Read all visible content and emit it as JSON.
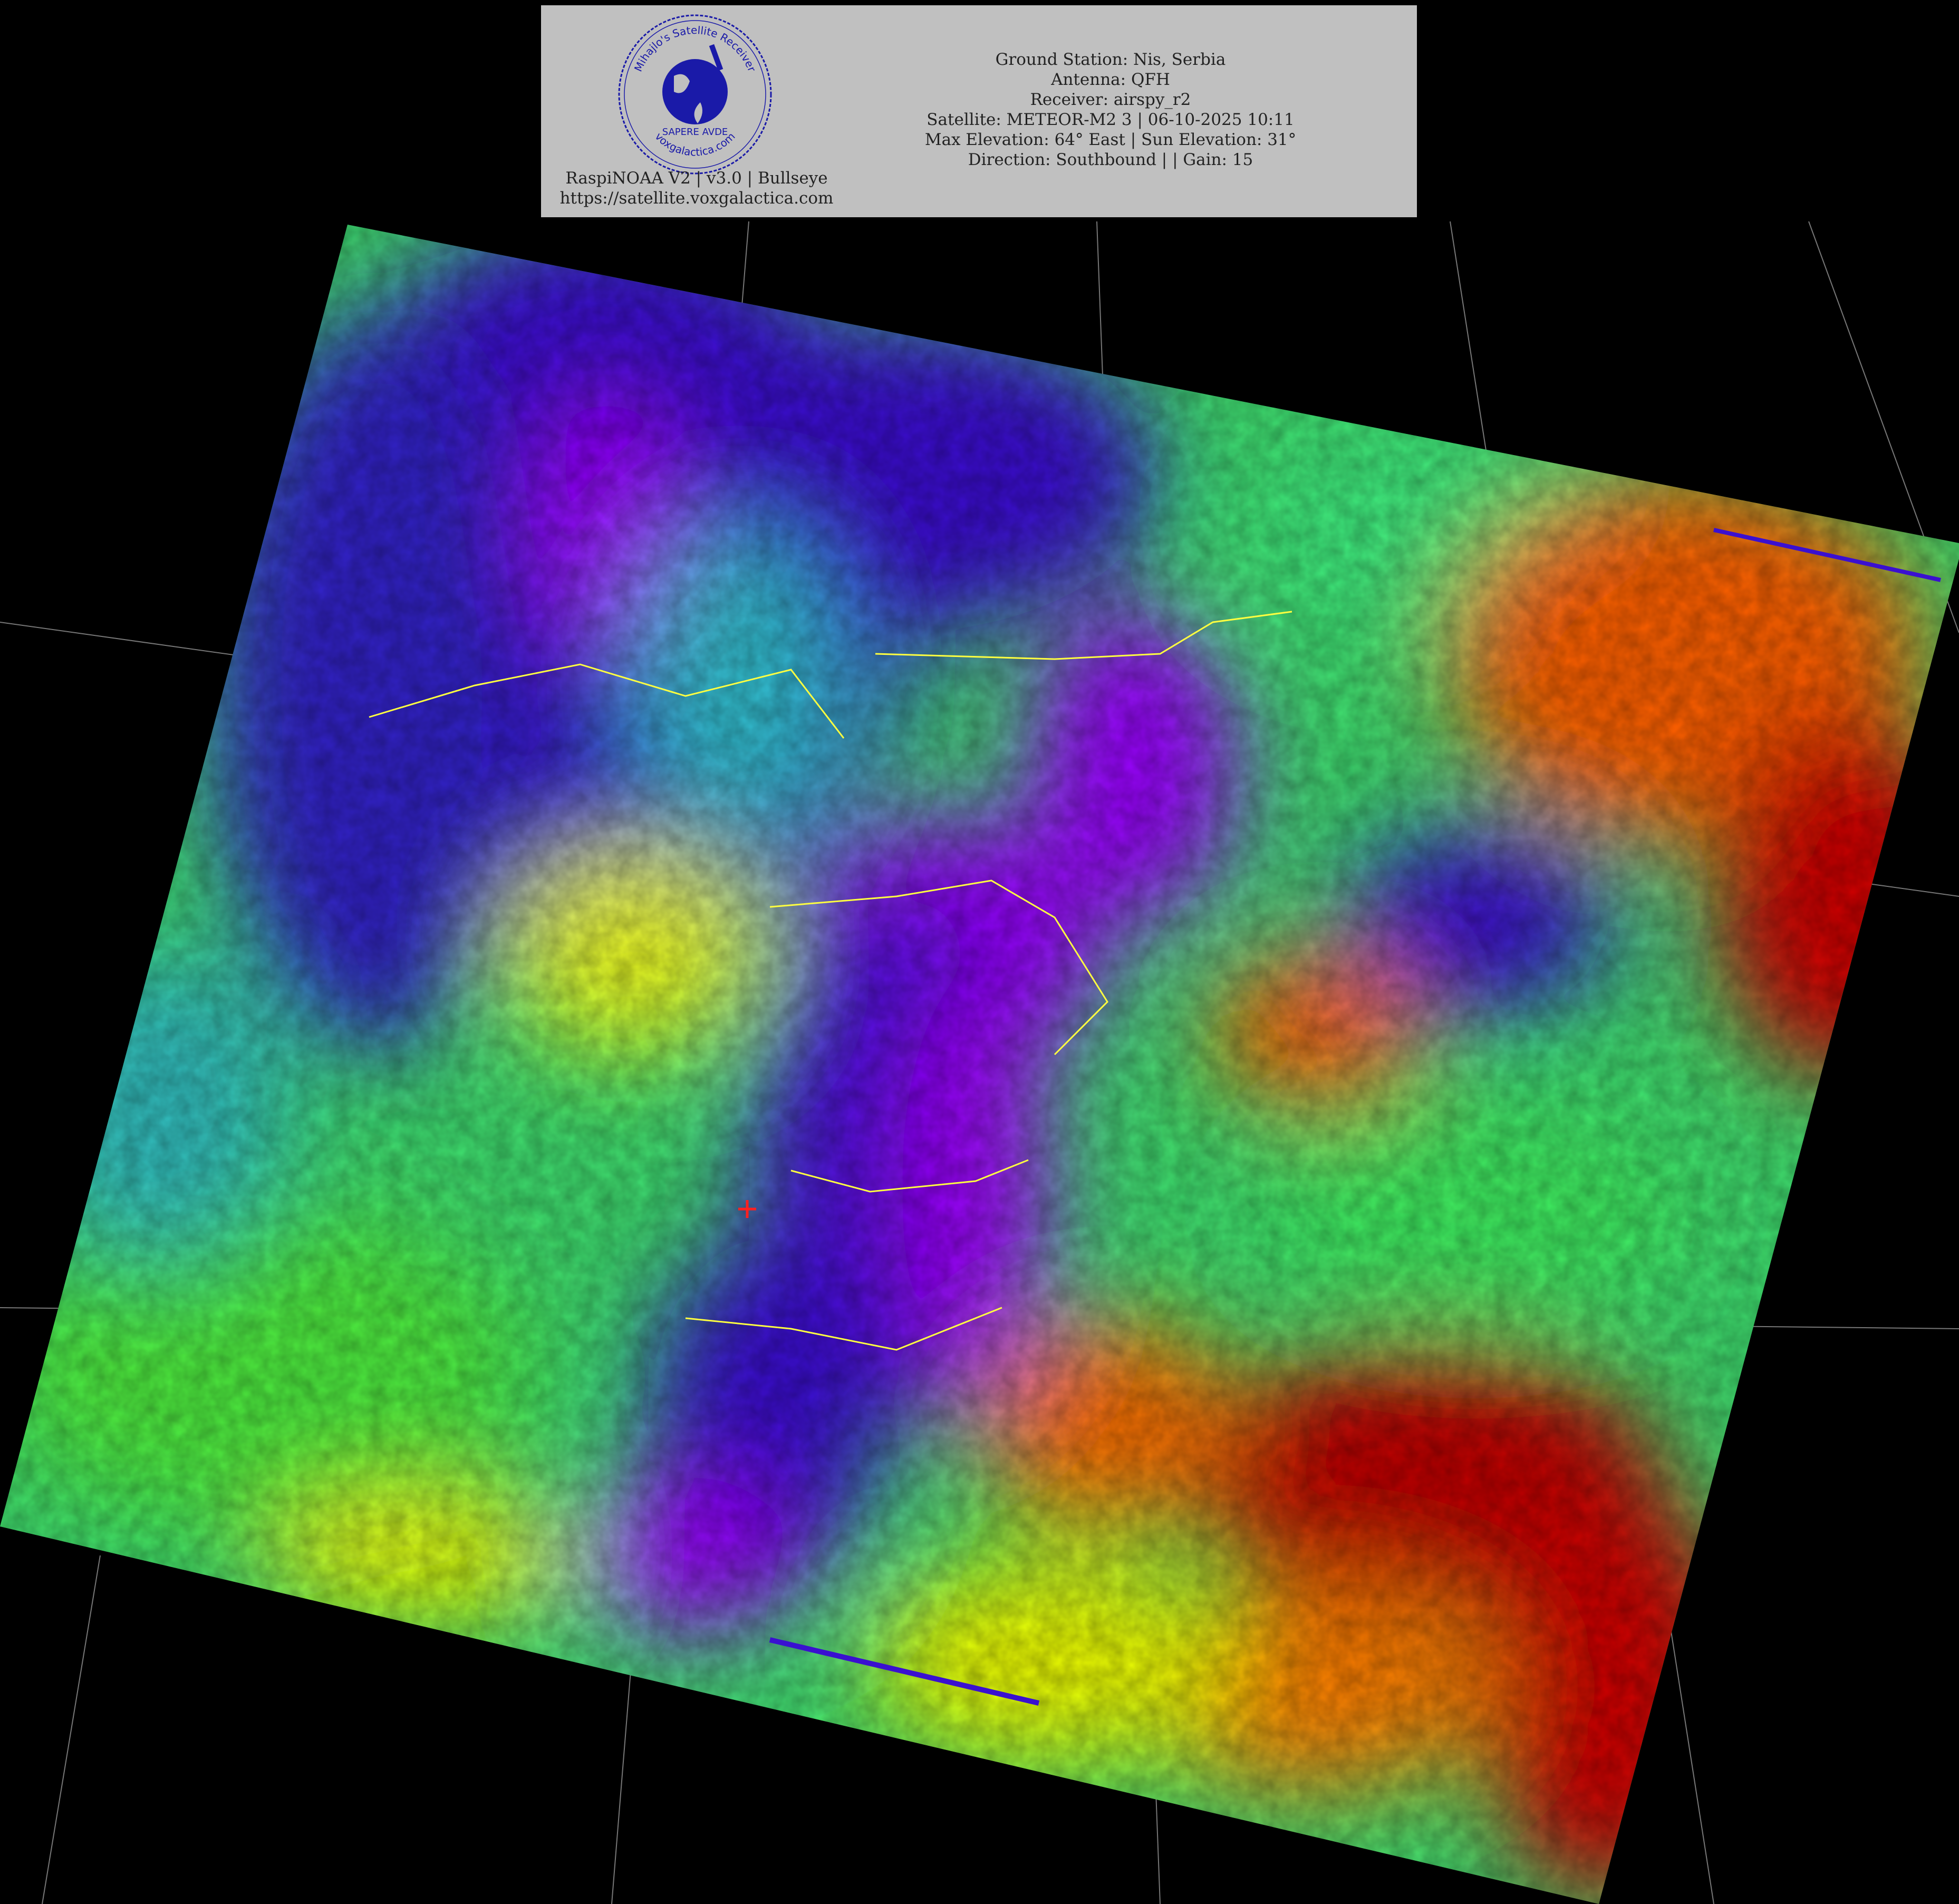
{
  "header": {
    "info_lines": [
      "Ground Station: Nis, Serbia",
      "Antenna: QFH",
      "Receiver: airspy_r2",
      "Satellite: METEOR-M2 3 | 06-10-2025 10:11",
      "Max Elevation: 64° East | Sun Elevation: 31°",
      "Direction: Southbound | | Gain: 15"
    ],
    "software": "RaspiNOAA V2 | v3.0 | Bullseye",
    "url": "https://satellite.voxgalactica.com",
    "logo": {
      "top_text": "Mihajlo's Satellite Receiver",
      "motto": "SAPERE AVDE",
      "bottom_text": "voxgalactica.com",
      "color": "#1a1aa8"
    }
  },
  "image": {
    "type": "satellite-false-color-thermal",
    "palette": [
      "#9a00ff",
      "#3a10d0",
      "#20c0d0",
      "#40f060",
      "#f0ff00",
      "#ff6000",
      "#c00000"
    ],
    "border_color": "#ffff40",
    "coast_color": "#d0f0f0",
    "marker_color": "#ff2020"
  }
}
